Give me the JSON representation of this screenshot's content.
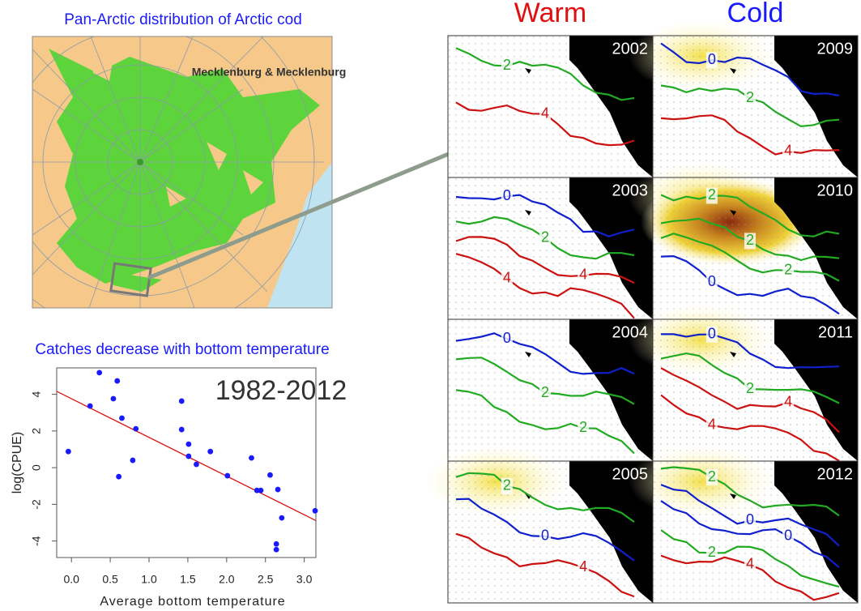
{
  "chart_data": {
    "type": "scatter",
    "title": "Catches decrease with bottom temperature",
    "annotation": "1982-2012",
    "xlabel": "Average bottom temperature",
    "ylabel": "log(CPUE)",
    "x": [
      -0.04,
      0.24,
      0.36,
      0.54,
      0.59,
      0.61,
      0.65,
      0.79,
      0.83,
      1.42,
      1.42,
      1.51,
      1.51,
      1.61,
      1.79,
      2.01,
      2.32,
      2.39,
      2.44,
      2.56,
      2.66,
      2.64,
      2.64,
      2.71,
      3.14
    ],
    "values": [
      0.88,
      3.36,
      5.18,
      3.76,
      4.73,
      -0.49,
      2.7,
      0.4,
      2.12,
      3.63,
      2.08,
      1.28,
      0.62,
      0.18,
      0.88,
      -0.44,
      0.53,
      -1.24,
      -1.24,
      -0.4,
      -1.19,
      -4.16,
      -4.47,
      -2.74,
      -2.35
    ],
    "color": "#1a1aff",
    "fit": {
      "intercept": 3.76,
      "slope": -2.11,
      "color": "#dd1111"
    },
    "xlim": [
      -0.19,
      3.15
    ],
    "ylim": [
      -4.9,
      5.44
    ],
    "xticks": [
      {
        "value": 0,
        "label": "0.0"
      },
      0.5,
      {
        "value": 1,
        "label": "1.0"
      },
      1.5,
      {
        "value": 2,
        "label": "2.0"
      },
      2.5,
      {
        "value": 3,
        "label": "3.0"
      }
    ],
    "yticks": [
      -4,
      -2,
      0,
      2,
      4
    ]
  },
  "map": {
    "title": "Pan-Arctic distribution of Arctic cod",
    "label": "Mecklenburg & Mecklenburg"
  },
  "columns": [
    {
      "header": "Warm",
      "color": "#e01010",
      "panels": [
        {
          "year": "2002",
          "contours": [
            {
              "label": "2",
              "color": "#22aa22"
            },
            {
              "label": "4",
              "color": "#cc1111"
            }
          ]
        },
        {
          "year": "2003",
          "contours": [
            {
              "label": "0",
              "color": "#1020cc"
            },
            {
              "label": "2",
              "color": "#22aa22"
            },
            {
              "label": "4",
              "color": "#cc1111"
            },
            {
              "label": "4",
              "color": "#cc1111"
            }
          ]
        },
        {
          "year": "2004",
          "contours": [
            {
              "label": "0",
              "color": "#1020cc"
            },
            {
              "label": "2",
              "color": "#22aa22"
            },
            {
              "label": "2",
              "color": "#22aa22"
            }
          ]
        },
        {
          "year": "2005",
          "contours": [
            {
              "label": "2",
              "color": "#22aa22"
            },
            {
              "label": "0",
              "color": "#1020cc"
            },
            {
              "label": "4",
              "color": "#cc1111"
            }
          ]
        }
      ]
    },
    {
      "header": "Cold",
      "color": "#1a1aff",
      "panels": [
        {
          "year": "2009",
          "contours": [
            {
              "label": "0",
              "color": "#1020cc"
            },
            {
              "label": "2",
              "color": "#22aa22"
            },
            {
              "label": "4",
              "color": "#cc1111"
            }
          ]
        },
        {
          "year": "2010",
          "contours": [
            {
              "label": "2",
              "color": "#22aa22"
            },
            {
              "label": "2",
              "color": "#22aa22"
            },
            {
              "label": "2",
              "color": "#22aa22"
            },
            {
              "label": "0",
              "color": "#1020cc"
            }
          ]
        },
        {
          "year": "2011",
          "contours": [
            {
              "label": "0",
              "color": "#1020cc"
            },
            {
              "label": "2",
              "color": "#22aa22"
            },
            {
              "label": "4",
              "color": "#cc1111"
            },
            {
              "label": "4",
              "color": "#cc1111"
            }
          ]
        },
        {
          "year": "2012",
          "contours": [
            {
              "label": "2",
              "color": "#22aa22"
            },
            {
              "label": "0",
              "color": "#1020cc"
            },
            {
              "label": "0",
              "color": "#1020cc"
            },
            {
              "label": "2",
              "color": "#22aa22"
            },
            {
              "label": "4",
              "color": "#cc1111"
            }
          ]
        }
      ]
    }
  ]
}
